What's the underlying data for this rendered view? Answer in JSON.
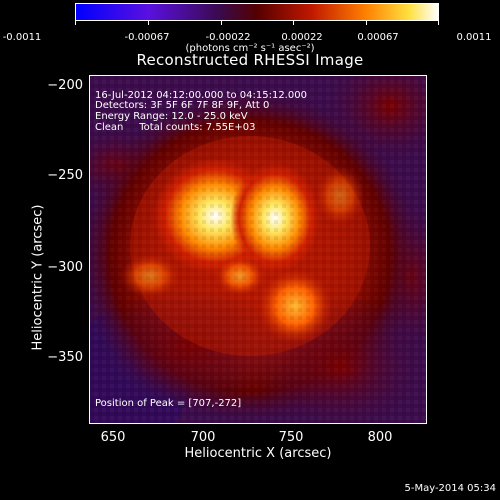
{
  "colorbar": {
    "ticks": [
      "-0.0011",
      "-0.00067",
      "-0.00022",
      "0.00022",
      "0.00067",
      "0.0011"
    ],
    "unit_label": "(photons cm⁻² s⁻¹ asec⁻²)"
  },
  "title": "Reconstructed RHESSI Image",
  "info": {
    "time": "16-Jul-2012 04:12:00.000 to 04:15:12.000",
    "detectors": "Detectors: 3F 5F 6F 7F 8F 9F, Att 0",
    "energy": "Energy Range: 12.0 - 25.0 keV",
    "clean": "Clean     Total counts: 7.55E+03",
    "peak": "Position of Peak = [707,-272]"
  },
  "axes": {
    "xlabel": "Heliocentric X (arcsec)",
    "ylabel": "Heliocentric Y (arcsec)",
    "xticks": [
      "650",
      "700",
      "750",
      "800"
    ],
    "yticks": [
      "−200",
      "−250",
      "−300",
      "−350"
    ]
  },
  "footer": "5-May-2014 05:34"
}
